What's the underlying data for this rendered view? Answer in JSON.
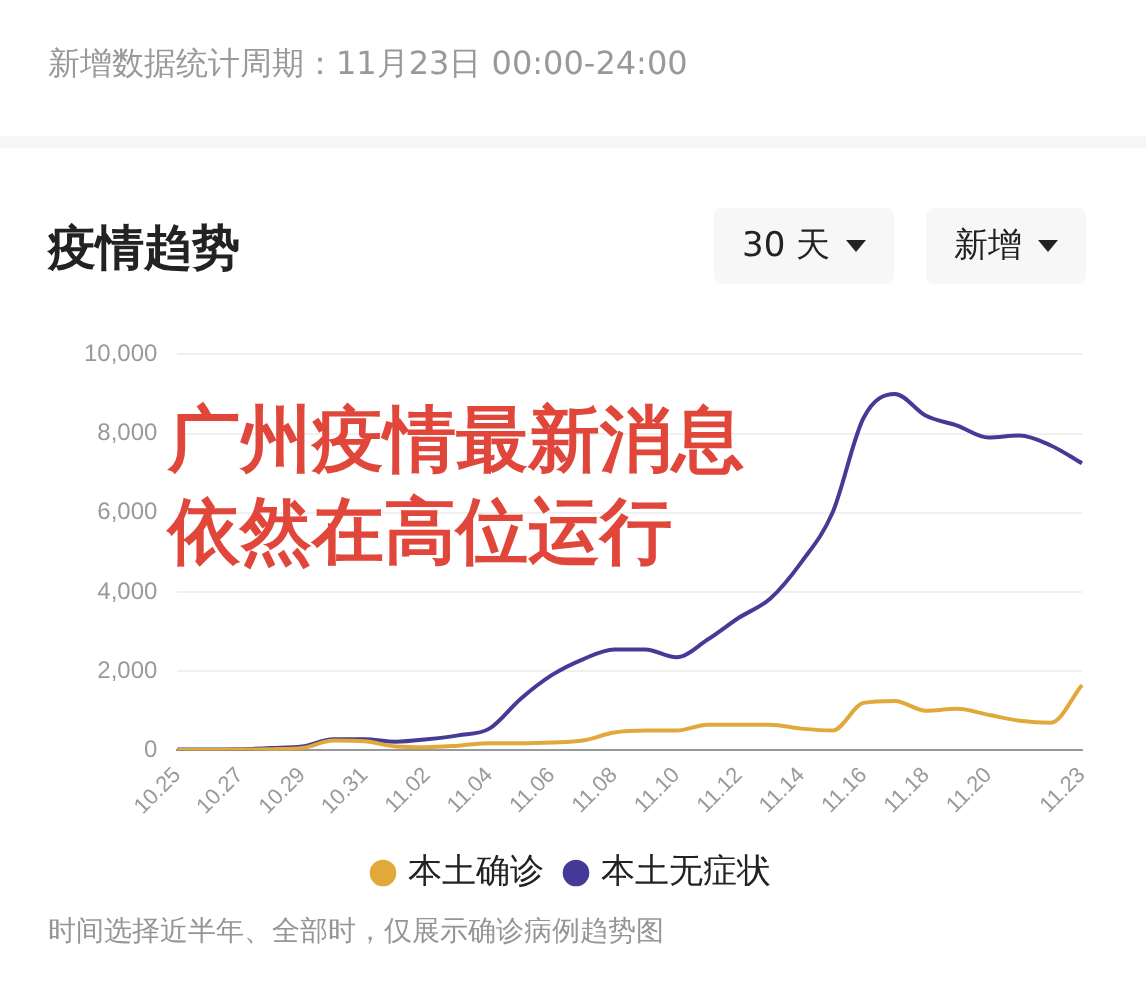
{
  "chart_data": {
    "type": "line",
    "title": "疫情趋势",
    "subtitle": "新增数据统计周期：11月23日 00:00-24:00",
    "annotations": [
      "广州疫情最新消息",
      "依然在高位运行",
      "时间选择近半年、全部时，仅展示确诊病例趋势图",
      "30 天",
      "新增"
    ],
    "categories": [
      "10.25",
      null,
      "10.27",
      null,
      "10.29",
      null,
      "10.31",
      null,
      "11.02",
      null,
      "11.04",
      null,
      "11.06",
      null,
      "11.08",
      null,
      "11.10",
      null,
      "11.12",
      null,
      "11.14",
      null,
      "11.16",
      null,
      "11.18",
      null,
      "11.20",
      null,
      null,
      "11.23"
    ],
    "series": [
      {
        "name": "本土确诊",
        "color": "#e0a93a",
        "values": [
          10,
          10,
          20,
          30,
          60,
          250,
          230,
          100,
          80,
          120,
          180,
          180,
          200,
          250,
          450,
          500,
          500,
          650,
          650,
          650,
          550,
          500,
          1200,
          1250,
          1000,
          1050,
          900,
          750,
          700,
          1650
        ]
      },
      {
        "name": "本土无症状",
        "color": "#453a96",
        "values": [
          20,
          20,
          30,
          60,
          100,
          280,
          280,
          220,
          280,
          380,
          550,
          1300,
          1900,
          2300,
          2550,
          2550,
          2350,
          2800,
          3350,
          3830,
          4750,
          6000,
          8400,
          9000,
          8450,
          8200,
          7900,
          7950,
          7700,
          7250
        ]
      }
    ],
    "ylim": [
      0,
      10000
    ],
    "yticks": [
      0,
      {
        "value": 2000,
        "label": "2,000"
      },
      {
        "value": 4000,
        "label": "4,000"
      },
      {
        "value": 6000,
        "label": "6,000"
      },
      {
        "value": 8000,
        "label": "8,000"
      },
      {
        "value": 10000,
        "label": "10,000"
      }
    ],
    "grid": "y",
    "legend": "bottom",
    "marker": "none",
    "line_style": "solid"
  }
}
